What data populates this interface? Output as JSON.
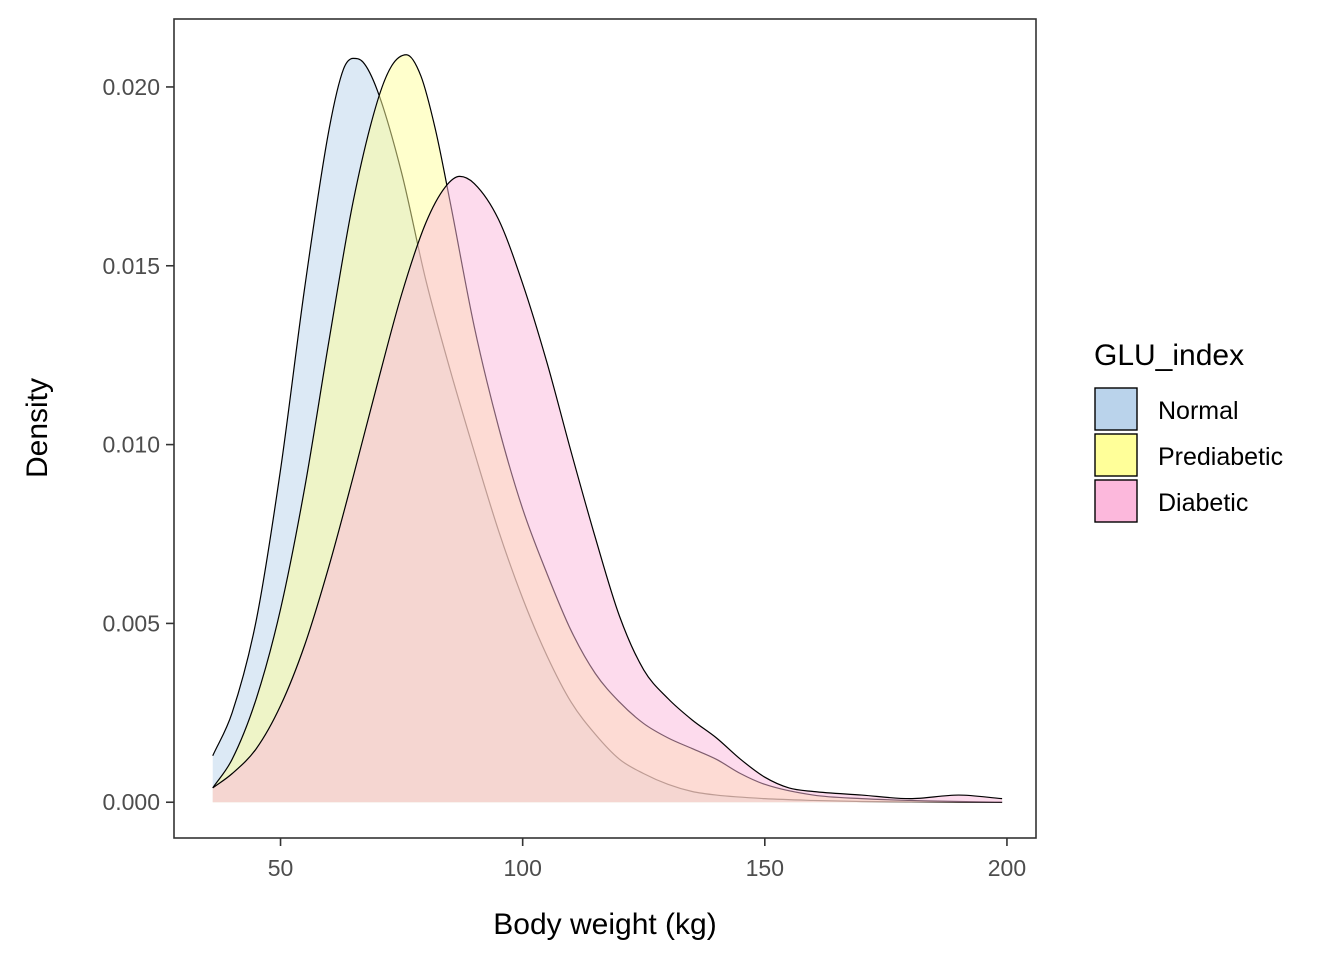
{
  "chart_data": {
    "type": "area",
    "subtype": "density",
    "xlabel": "Body weight (kg)",
    "ylabel": "Density",
    "xlim": [
      28,
      206
    ],
    "ylim": [
      -0.001,
      0.0219
    ],
    "xticks": [
      50,
      100,
      150,
      200
    ],
    "xtick_labels": [
      "50",
      "100",
      "150",
      "200"
    ],
    "yticks": [
      0.0,
      0.005,
      0.01,
      0.015,
      0.02
    ],
    "ytick_labels": [
      "0.000",
      "0.005",
      "0.010",
      "0.015",
      "0.020"
    ],
    "grid": false,
    "legend": {
      "title": "GLU_index",
      "position": "right",
      "entries": [
        "Normal",
        "Prediabetic",
        "Diabetic"
      ]
    },
    "series": [
      {
        "name": "Normal",
        "color": "#bad3eb",
        "x": [
          36,
          40,
          45,
          50,
          55,
          60,
          63,
          65,
          67,
          70,
          75,
          80,
          85,
          90,
          95,
          100,
          105,
          110,
          115,
          120,
          125,
          130,
          135,
          140,
          150,
          160,
          170,
          180,
          190,
          199
        ],
        "y": [
          0.0013,
          0.0025,
          0.0051,
          0.0093,
          0.0144,
          0.0188,
          0.0205,
          0.0208,
          0.0207,
          0.0199,
          0.0176,
          0.0146,
          0.0121,
          0.0098,
          0.0076,
          0.0057,
          0.0041,
          0.0028,
          0.0019,
          0.0012,
          0.0008,
          0.0005,
          0.0003,
          0.0002,
          0.0001,
          5e-05,
          2e-05,
          1e-05,
          0.0,
          0.0
        ]
      },
      {
        "name": "Prediabetic",
        "color": "#ffff99",
        "x": [
          36,
          40,
          45,
          50,
          55,
          60,
          65,
          70,
          73,
          76,
          79,
          82,
          85,
          90,
          95,
          100,
          105,
          110,
          115,
          120,
          125,
          130,
          135,
          140,
          145,
          150,
          160,
          170,
          180,
          190,
          199
        ],
        "y": [
          0.0004,
          0.0012,
          0.0029,
          0.0054,
          0.0088,
          0.0129,
          0.0168,
          0.0196,
          0.0206,
          0.0209,
          0.0203,
          0.0188,
          0.0168,
          0.0133,
          0.0105,
          0.0082,
          0.0064,
          0.0048,
          0.0036,
          0.0028,
          0.0022,
          0.0018,
          0.0015,
          0.0012,
          0.0008,
          0.0005,
          0.0002,
          0.0001,
          5e-05,
          2e-05,
          0.0
        ]
      },
      {
        "name": "Diabetic",
        "color": "#fcb8dc",
        "x": [
          36,
          40,
          45,
          50,
          55,
          60,
          65,
          70,
          75,
          80,
          84,
          87,
          90,
          95,
          100,
          105,
          110,
          115,
          120,
          125,
          130,
          135,
          140,
          145,
          150,
          155,
          160,
          170,
          180,
          190,
          199
        ],
        "y": [
          0.0004,
          0.0008,
          0.0015,
          0.0027,
          0.0044,
          0.0066,
          0.0091,
          0.0117,
          0.0142,
          0.0162,
          0.0172,
          0.0175,
          0.0173,
          0.0163,
          0.0145,
          0.0123,
          0.0098,
          0.0074,
          0.0052,
          0.0037,
          0.0029,
          0.0023,
          0.0018,
          0.0012,
          0.0007,
          0.0004,
          0.0003,
          0.0002,
          0.0001,
          0.0002,
          0.0001
        ]
      }
    ]
  }
}
